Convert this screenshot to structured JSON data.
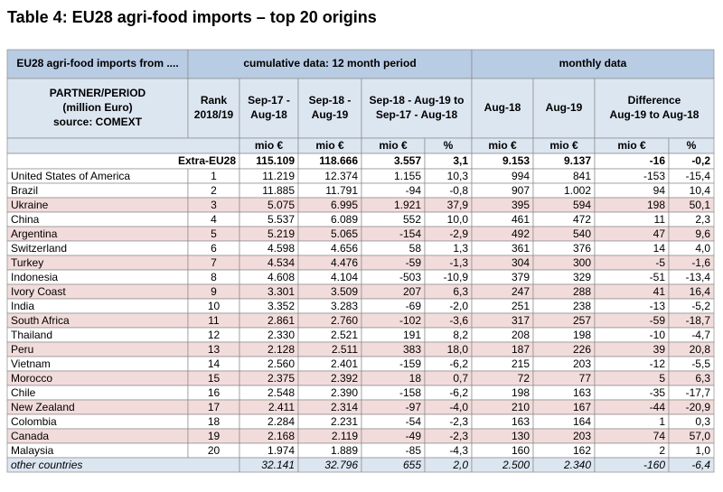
{
  "title": "Table 4: EU28 agri-food imports – top 20 origins",
  "table": {
    "header_top": [
      "EU28 agri-food imports from ....",
      "cumulative data: 12 month period",
      "monthly data"
    ],
    "header_cols": [
      [
        "PARTNER/PERIOD",
        "(million Euro)",
        "source: COMEXT"
      ],
      [
        "Rank",
        "2018/19"
      ],
      [
        "Sep-17 -",
        "Aug-18"
      ],
      [
        "Sep-18 -",
        "Aug-19"
      ],
      [
        "Sep-18 - Aug-19 to",
        "Sep-17 - Aug-18"
      ],
      [
        "Aug-18"
      ],
      [
        "Aug-19"
      ],
      [
        "Difference",
        "Aug-19 to Aug-18"
      ]
    ],
    "units": [
      "mio €",
      "mio €",
      "mio €",
      "%",
      "mio €",
      "mio €",
      "mio €",
      "%"
    ],
    "total": [
      "Extra-EU28",
      "115.109",
      "118.666",
      "3.557",
      "3,1",
      "9.153",
      "9.137",
      "-16",
      "-0,2"
    ],
    "rows": [
      [
        "United States of America",
        "1",
        "11.219",
        "12.374",
        "1.155",
        "10,3",
        "994",
        "841",
        "-153",
        "-15,4"
      ],
      [
        "Brazil",
        "2",
        "11.885",
        "11.791",
        "-94",
        "-0,8",
        "907",
        "1.002",
        "94",
        "10,4"
      ],
      [
        "Ukraine",
        "3",
        "5.075",
        "6.995",
        "1.921",
        "37,9",
        "395",
        "594",
        "198",
        "50,1"
      ],
      [
        "China",
        "4",
        "5.537",
        "6.089",
        "552",
        "10,0",
        "461",
        "472",
        "11",
        "2,3"
      ],
      [
        "Argentina",
        "5",
        "5.219",
        "5.065",
        "-154",
        "-2,9",
        "492",
        "540",
        "47",
        "9,6"
      ],
      [
        "Switzerland",
        "6",
        "4.598",
        "4.656",
        "58",
        "1,3",
        "361",
        "376",
        "14",
        "4,0"
      ],
      [
        "Turkey",
        "7",
        "4.534",
        "4.476",
        "-59",
        "-1,3",
        "304",
        "300",
        "-5",
        "-1,6"
      ],
      [
        "Indonesia",
        "8",
        "4.608",
        "4.104",
        "-503",
        "-10,9",
        "379",
        "329",
        "-51",
        "-13,4"
      ],
      [
        "Ivory Coast",
        "9",
        "3.301",
        "3.509",
        "207",
        "6,3",
        "247",
        "288",
        "41",
        "16,4"
      ],
      [
        "India",
        "10",
        "3.352",
        "3.283",
        "-69",
        "-2,0",
        "251",
        "238",
        "-13",
        "-5,2"
      ],
      [
        "South Africa",
        "11",
        "2.861",
        "2.760",
        "-102",
        "-3,6",
        "317",
        "257",
        "-59",
        "-18,7"
      ],
      [
        "Thailand",
        "12",
        "2.330",
        "2.521",
        "191",
        "8,2",
        "208",
        "198",
        "-10",
        "-4,7"
      ],
      [
        "Peru",
        "13",
        "2.128",
        "2.511",
        "383",
        "18,0",
        "187",
        "226",
        "39",
        "20,8"
      ],
      [
        "Vietnam",
        "14",
        "2.560",
        "2.401",
        "-159",
        "-6,2",
        "215",
        "203",
        "-12",
        "-5,5"
      ],
      [
        "Morocco",
        "15",
        "2.375",
        "2.392",
        "18",
        "0,7",
        "72",
        "77",
        "5",
        "6,3"
      ],
      [
        "Chile",
        "16",
        "2.548",
        "2.390",
        "-158",
        "-6,2",
        "198",
        "163",
        "-35",
        "-17,7"
      ],
      [
        "New Zealand",
        "17",
        "2.411",
        "2.314",
        "-97",
        "-4,0",
        "210",
        "167",
        "-44",
        "-20,9"
      ],
      [
        "Colombia",
        "18",
        "2.284",
        "2.231",
        "-54",
        "-2,3",
        "163",
        "164",
        "1",
        "0,3"
      ],
      [
        "Canada",
        "19",
        "2.168",
        "2.119",
        "-49",
        "-2,3",
        "130",
        "203",
        "74",
        "57,0"
      ],
      [
        "Malaysia",
        "20",
        "1.974",
        "1.889",
        "-85",
        "-4,3",
        "160",
        "162",
        "2",
        "1,0"
      ]
    ],
    "other": [
      "other countries",
      "32.141",
      "32.796",
      "655",
      "2,0",
      "2.500",
      "2.340",
      "-160",
      "-6,4"
    ]
  }
}
